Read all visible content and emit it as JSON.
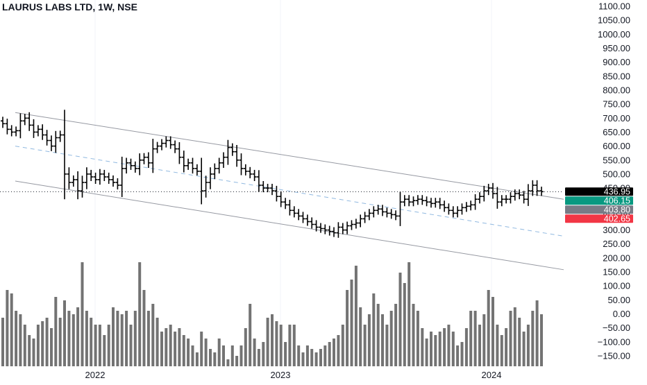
{
  "chart_data": {
    "type": "bar",
    "title": "LAURUS LABS LTD, 1W, NSE",
    "price_axis": {
      "ticks": [
        "1100.00",
        "1050.00",
        "1000.00",
        "950.00",
        "900.00",
        "850.00",
        "800.00",
        "750.00",
        "700.00",
        "650.00",
        "600.00",
        "550.00",
        "500.00",
        "450.00",
        "400.00",
        "350.00",
        "300.00",
        "250.00",
        "200.00",
        "150.00",
        "100.00",
        "50.00",
        "0.00",
        "−50.00",
        "−100.00",
        "−150.00"
      ],
      "ylim": [
        -150,
        1100
      ]
    },
    "time_axis": {
      "ticks": [
        "2022",
        "2023",
        "2024"
      ]
    },
    "price_labels": [
      {
        "text": "436.95",
        "value": 436.95,
        "color": "#000000"
      },
      {
        "text": "406.15",
        "value": 406.15,
        "color": "#089981"
      },
      {
        "text": "403.80",
        "value": 403.8,
        "color": "#787b86"
      },
      {
        "text": "402.65",
        "value": 402.65,
        "color": "#f23645"
      }
    ],
    "current_price": 436.95,
    "channel": {
      "upper": {
        "start": 720,
        "end": 410
      },
      "mid": {
        "start": 600,
        "end": 278
      },
      "lower": {
        "start": 475,
        "end": 158
      }
    },
    "ohlc_close": [
      680,
      660,
      650,
      655,
      690,
      700,
      675,
      650,
      660,
      640,
      620,
      600,
      630,
      640,
      500,
      470,
      480,
      440,
      470,
      500,
      490,
      480,
      500,
      490,
      480,
      470,
      460,
      520,
      540,
      530,
      520,
      550,
      560,
      540,
      590,
      600,
      610,
      620,
      605,
      590,
      560,
      530,
      540,
      520,
      510,
      440,
      470,
      500,
      520,
      540,
      560,
      595,
      580,
      550,
      520,
      510,
      500,
      490,
      460,
      450,
      450,
      440,
      420,
      400,
      390,
      370,
      360,
      350,
      340,
      330,
      320,
      310,
      305,
      300,
      295,
      290,
      310,
      300,
      315,
      320,
      325,
      340,
      350,
      360,
      370,
      375,
      365,
      360,
      355,
      350,
      400,
      410,
      400,
      405,
      410,
      405,
      400,
      395,
      400,
      390,
      380,
      370,
      360,
      370,
      380,
      385,
      390,
      410,
      420,
      440,
      450,
      430,
      400,
      410,
      410,
      420,
      430,
      425,
      410,
      440,
      460,
      440,
      437
    ],
    "volume": [
      70,
      110,
      105,
      80,
      75,
      60,
      45,
      40,
      60,
      65,
      70,
      55,
      100,
      70,
      95,
      80,
      75,
      85,
      150,
      80,
      70,
      60,
      60,
      45,
      60,
      85,
      80,
      75,
      80,
      60,
      80,
      150,
      110,
      80,
      90,
      70,
      50,
      55,
      60,
      50,
      55,
      45,
      40,
      30,
      20,
      50,
      40,
      25,
      20,
      40,
      30,
      10,
      30,
      15,
      30,
      55,
      90,
      40,
      25,
      35,
      70,
      75,
      65,
      60,
      35,
      60,
      60,
      30,
      20,
      30,
      25,
      20,
      25,
      30,
      35,
      40,
      45,
      60,
      110,
      125,
      145,
      85,
      60,
      75,
      105,
      90,
      75,
      60,
      80,
      90,
      135,
      120,
      150,
      90,
      80,
      55,
      40,
      50,
      45,
      50,
      55,
      60,
      50,
      30,
      35,
      55,
      80,
      80,
      60,
      75,
      110,
      100,
      60,
      45,
      55,
      80,
      85,
      70,
      50,
      60,
      80,
      95,
      75
    ]
  }
}
